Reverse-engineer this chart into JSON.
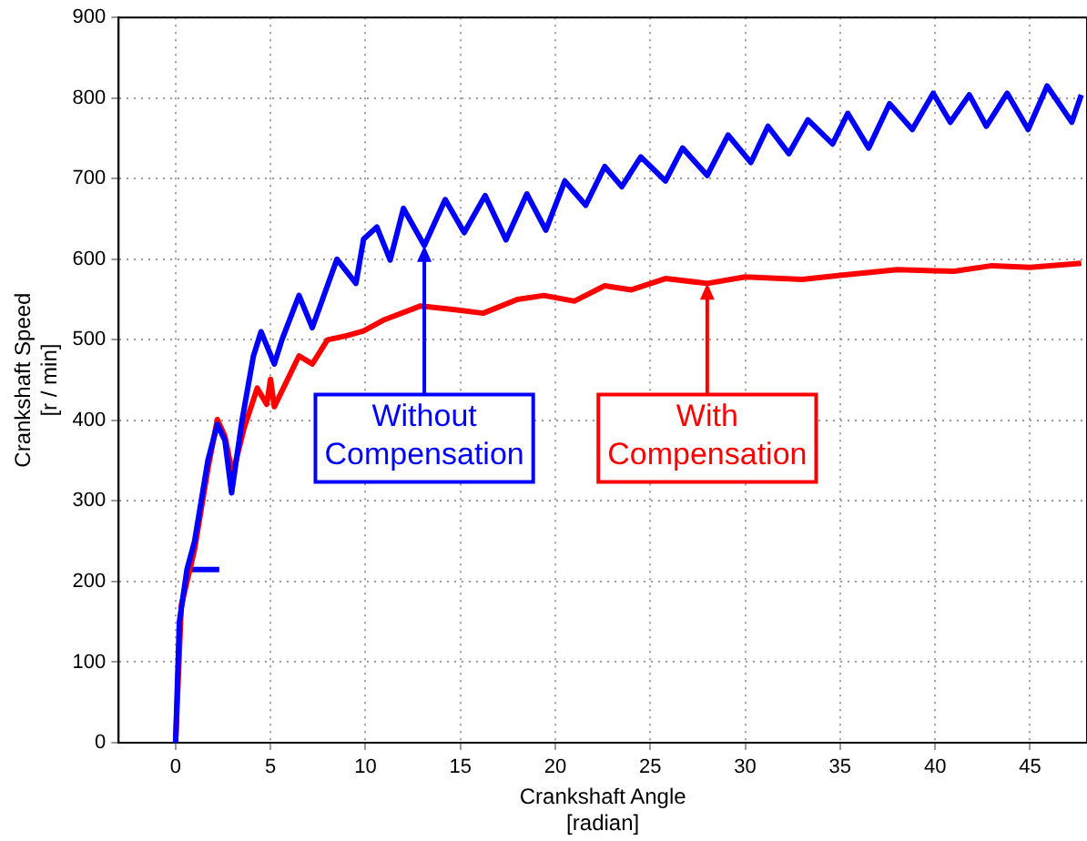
{
  "chart_data": {
    "type": "line",
    "xlabel": "Crankshaft Angle\n[radian]",
    "ylabel": "Crankshaft Speed\n[r / min]",
    "xlim": [
      -3,
      48
    ],
    "xticks": [
      0,
      5,
      10,
      15,
      20,
      25,
      30,
      35,
      40,
      45
    ],
    "ylim": [
      0,
      900
    ],
    "yticks": [
      0,
      100,
      200,
      300,
      400,
      500,
      600,
      700,
      800,
      900
    ],
    "grid": true,
    "series": [
      {
        "color": "#0000ff",
        "x": [
          0,
          0.2,
          0.6,
          1,
          1.7,
          2.2,
          2.6,
          2.95,
          3.5,
          4.1,
          4.5,
          5.2,
          5.6,
          6.5,
          7.2,
          8.5,
          9.5,
          9.9,
          10.6,
          11.3,
          12.0,
          13.1,
          14.2,
          15.2,
          16.3,
          17.4,
          18.5,
          19.5,
          20.5,
          21.6,
          22.6,
          23.5,
          24.5,
          25.8,
          26.7,
          28.0,
          29.1,
          30.3,
          31.2,
          32.3,
          33.3,
          34.6,
          35.4,
          36.5,
          37.6,
          38.8,
          39.9,
          40.8,
          41.8,
          42.7,
          43.8,
          44.9,
          45.9,
          47.2,
          47.7
        ],
        "values": [
          0,
          150,
          215,
          250,
          350,
          395,
          375,
          310,
          400,
          480,
          510,
          470,
          500,
          555,
          515,
          600,
          570,
          625,
          640,
          599,
          663,
          617,
          674,
          633,
          679,
          624,
          681,
          636,
          697,
          667,
          715,
          690,
          727,
          697,
          738,
          704,
          754,
          720,
          765,
          731,
          773,
          743,
          781,
          738,
          793,
          761,
          806,
          770,
          804,
          765,
          806,
          761,
          815,
          770,
          804
        ]
      },
      {
        "color": "#ff0000",
        "x": [
          0,
          0.3,
          1,
          1.7,
          2.2,
          2.6,
          3.0,
          3.6,
          4.3,
          4.8,
          5.0,
          5.2,
          6.5,
          7.2,
          8,
          9,
          9.9,
          11,
          12.9,
          14.5,
          16.2,
          18,
          19.4,
          21,
          22.6,
          24,
          25.8,
          28,
          30,
          33,
          35,
          38,
          41,
          43,
          45,
          47.7
        ],
        "values": [
          0,
          170,
          240,
          340,
          401,
          380,
          333,
          390,
          440,
          420,
          451,
          417,
          480,
          470,
          500,
          505,
          511,
          525,
          542,
          538,
          533,
          550,
          555,
          548,
          567,
          562,
          576,
          570,
          578,
          575,
          580,
          587,
          585,
          592,
          590,
          595
        ]
      },
      {
        "color": "#0000ff",
        "x": [
          0.6,
          2.3
        ],
        "values": [
          215,
          215
        ]
      }
    ],
    "annotations": [
      {
        "text": "Without\nCompensation",
        "x": 13.1,
        "y": 617
      },
      {
        "text": "With\nCompensation",
        "x": 28,
        "y": 570
      }
    ]
  }
}
